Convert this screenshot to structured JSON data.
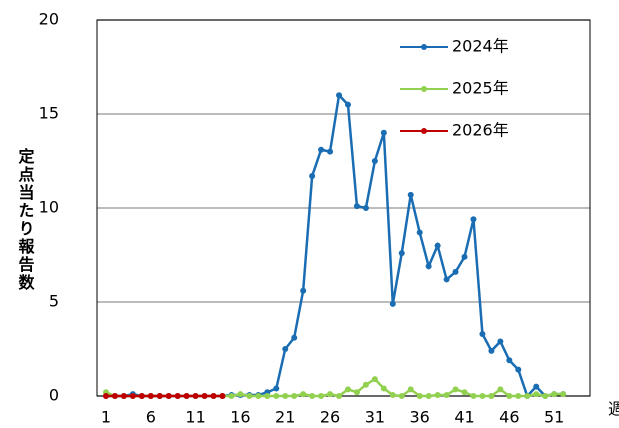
{
  "chart_data": {
    "type": "line",
    "ylabel": "定点当たり報告数",
    "xlabel": "週",
    "x": [
      1,
      2,
      3,
      4,
      5,
      6,
      7,
      8,
      9,
      10,
      11,
      12,
      13,
      14,
      15,
      16,
      17,
      18,
      19,
      20,
      21,
      22,
      23,
      24,
      25,
      26,
      27,
      28,
      29,
      30,
      31,
      32,
      33,
      34,
      35,
      36,
      37,
      38,
      39,
      40,
      41,
      42,
      43,
      44,
      45,
      46,
      47,
      48,
      49,
      50,
      51,
      52
    ],
    "xlim": [
      0,
      55
    ],
    "xticks": [
      1,
      6,
      11,
      16,
      21,
      26,
      31,
      36,
      41,
      46,
      51
    ],
    "ylim": [
      0,
      20
    ],
    "yticks": [
      0,
      5,
      10,
      15,
      20
    ],
    "grid": true,
    "legend": "upper right",
    "series": [
      {
        "name": "2024年",
        "color": "#1b6db3",
        "values": [
          0,
          0,
          0,
          0.1,
          0,
          0,
          0,
          0,
          0,
          0,
          0,
          0,
          0,
          0,
          0.05,
          0.05,
          0.05,
          0.05,
          0.2,
          0.4,
          2.5,
          3.1,
          5.6,
          11.7,
          13.1,
          13.0,
          16.0,
          15.5,
          10.1,
          10.0,
          12.5,
          14.0,
          4.9,
          7.6,
          10.7,
          8.7,
          6.9,
          8.0,
          6.2,
          6.6,
          7.4,
          9.4,
          3.3,
          2.4,
          2.9,
          1.9,
          1.4,
          0.0,
          0.5,
          0.0,
          0.1,
          0.1
        ]
      },
      {
        "name": "2025年",
        "color": "#92d050",
        "values": [
          0.2,
          0,
          0,
          0,
          0,
          0,
          0,
          0,
          0,
          0,
          0,
          0,
          0,
          0,
          0,
          0.1,
          0,
          0,
          0,
          0,
          0,
          0,
          0.1,
          0,
          0,
          0.1,
          0,
          0.35,
          0.2,
          0.6,
          0.9,
          0.4,
          0.05,
          0,
          0.35,
          0,
          0,
          0.05,
          0.05,
          0.35,
          0.2,
          0,
          0,
          0,
          0.35,
          0,
          0,
          0,
          0.1,
          0,
          0.1,
          0.1
        ]
      },
      {
        "name": "2026年",
        "color": "#c00000",
        "values": [
          0,
          0,
          0,
          0,
          0,
          0,
          0,
          0,
          0,
          0,
          0,
          0,
          0,
          0,
          null,
          null,
          null,
          null,
          null,
          null,
          null,
          null,
          null,
          null,
          null,
          null,
          null,
          null,
          null,
          null,
          null,
          null,
          null,
          null,
          null,
          null,
          null,
          null,
          null,
          null,
          null,
          null,
          null,
          null,
          null,
          null,
          null,
          null,
          null,
          null,
          null,
          null
        ]
      }
    ]
  }
}
